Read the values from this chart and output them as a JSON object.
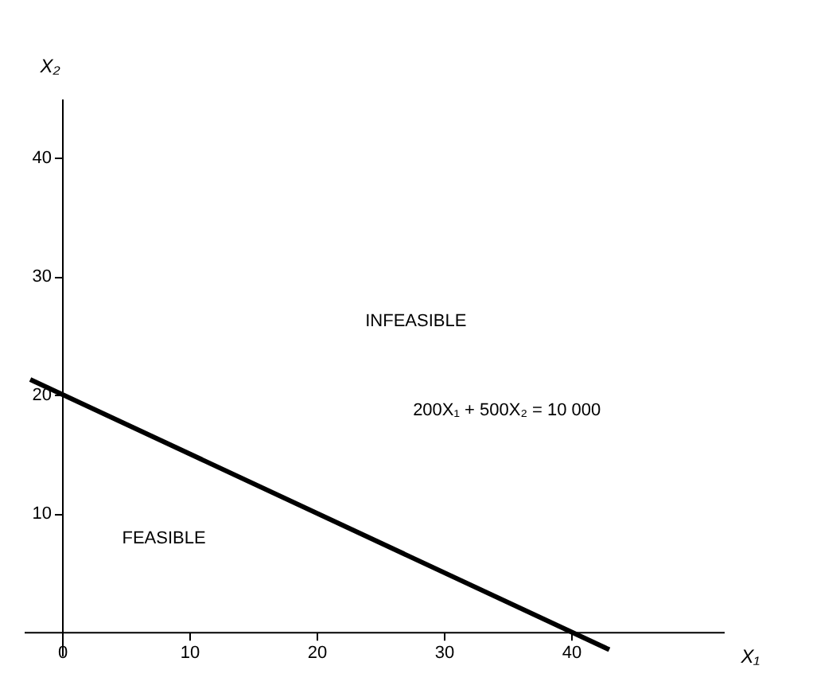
{
  "chart_data": {
    "type": "line",
    "x": [
      -2.5,
      43
    ],
    "series": [
      {
        "color": "#000000",
        "values": [
          21.3,
          -1.5
        ]
      }
    ],
    "xlim": [
      -3,
      52
    ],
    "ylim": [
      -2,
      45
    ],
    "xticks": [
      0,
      10,
      20,
      30,
      40
    ],
    "yticks": [
      10,
      20,
      30,
      40
    ],
    "xlabel": "X₁",
    "ylabel": "X₂",
    "annotations": [
      "INFEASIBLE",
      "FEASIBLE",
      "200X₁ + 500X₂ = 10 000"
    ],
    "grid": false,
    "line_style": "solid"
  }
}
